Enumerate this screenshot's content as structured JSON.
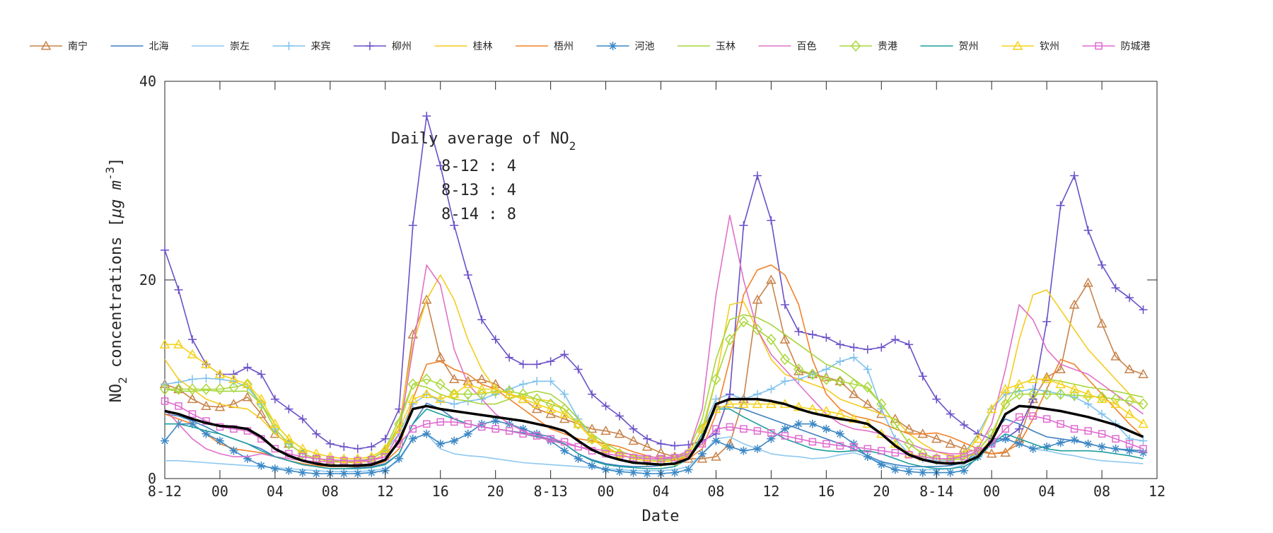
{
  "chart_data": {
    "type": "line",
    "xlabel": "Date",
    "ylabel_main": "NO",
    "ylabel_sub": "2",
    "ylabel_rest": " concentrations [",
    "ylabel_mu": "μg m",
    "ylabel_sup": "-3",
    "ylabel_end": "]",
    "ylim": [
      0,
      40
    ],
    "xlim": [
      0,
      72
    ],
    "yticks": [
      0,
      20,
      40
    ],
    "xticks": [
      {
        "x": 0,
        "label": "8-12"
      },
      {
        "x": 4,
        "label": "00"
      },
      {
        "x": 8,
        "label": "04"
      },
      {
        "x": 12,
        "label": "08"
      },
      {
        "x": 16,
        "label": "12"
      },
      {
        "x": 20,
        "label": "16"
      },
      {
        "x": 24,
        "label": "20"
      },
      {
        "x": 28,
        "label": "8-13"
      },
      {
        "x": 32,
        "label": "00"
      },
      {
        "x": 36,
        "label": "04"
      },
      {
        "x": 40,
        "label": "08"
      },
      {
        "x": 44,
        "label": "12"
      },
      {
        "x": 48,
        "label": "16"
      },
      {
        "x": 52,
        "label": "20"
      },
      {
        "x": 56,
        "label": "8-14"
      },
      {
        "x": 60,
        "label": "00"
      },
      {
        "x": 64,
        "label": "04"
      },
      {
        "x": 68,
        "label": "08"
      },
      {
        "x": 72,
        "label": "12"
      }
    ],
    "annotation": {
      "title": "Daily average of NO",
      "title_sub": "2",
      "lines": [
        "8-12 : 4",
        "8-13 : 4",
        "8-14 : 8"
      ]
    },
    "legend_placement": "top",
    "series": [
      {
        "name": "南宁",
        "color": "#c8834a",
        "marker": "triangle",
        "values": [
          9.5,
          9.0,
          8.0,
          7.3,
          7.2,
          7.5,
          8.2,
          6.5,
          4.5,
          3.5,
          2.5,
          2.0,
          1.8,
          1.7,
          1.8,
          2.0,
          2.8,
          5.0,
          14.5,
          18.0,
          12.2,
          10.0,
          9.8,
          10.0,
          9.5,
          8.5,
          8.0,
          7.0,
          6.5,
          6.0,
          5.5,
          5.0,
          4.8,
          4.5,
          3.8,
          3.2,
          2.6,
          2.2,
          2.0,
          2.0,
          2.2,
          3.5,
          8.0,
          18.0,
          20.0,
          14.0,
          10.8,
          10.5,
          10.2,
          9.8,
          8.5,
          7.5,
          6.5,
          6.0,
          5.0,
          4.5,
          4.0,
          3.5,
          3.0,
          2.7,
          2.5,
          2.6,
          4.0,
          8.0,
          10.2,
          11.0,
          17.5,
          19.7,
          15.6,
          12.3,
          11.0,
          10.5
        ]
      },
      {
        "name": "北海",
        "color": "#3f7fbf",
        "marker": "none",
        "values": [
          6.5,
          6.3,
          5.8,
          5.2,
          4.5,
          4.0,
          3.5,
          3.0,
          2.2,
          1.8,
          1.4,
          1.2,
          1.0,
          1.0,
          1.1,
          1.2,
          1.5,
          2.5,
          5.5,
          7.6,
          7.0,
          6.0,
          5.5,
          5.2,
          5.0,
          4.8,
          4.6,
          4.5,
          4.2,
          3.5,
          2.5,
          1.9,
          1.5,
          1.3,
          1.2,
          1.2,
          1.3,
          1.5,
          2.5,
          5.0,
          7.2,
          7.2,
          7.0,
          6.5,
          6.0,
          5.5,
          5.0,
          4.5,
          4.0,
          3.5,
          3.0,
          2.3,
          1.7,
          1.4,
          1.2,
          1.2,
          1.2,
          1.3,
          1.6,
          2.8,
          4.5,
          6.0,
          5.5,
          4.8,
          4.2,
          4.0,
          3.8,
          3.5,
          3.2,
          3.0,
          2.9,
          2.8
        ]
      },
      {
        "name": "崇左",
        "color": "#8ec8f0",
        "marker": "none",
        "values": [
          1.8,
          1.8,
          1.7,
          1.6,
          1.5,
          1.4,
          1.3,
          1.2,
          1.1,
          1.0,
          0.9,
          0.8,
          0.7,
          0.7,
          0.7,
          0.8,
          1.0,
          1.8,
          4.0,
          4.5,
          3.0,
          2.5,
          2.3,
          2.2,
          2.0,
          1.8,
          1.6,
          1.5,
          1.4,
          1.3,
          1.2,
          1.1,
          1.0,
          0.9,
          0.8,
          0.8,
          0.8,
          0.9,
          1.2,
          2.5,
          4.0,
          4.2,
          3.5,
          3.0,
          2.5,
          2.3,
          2.2,
          2.0,
          2.1,
          2.4,
          2.6,
          2.2,
          1.6,
          1.2,
          1.0,
          0.9,
          0.9,
          1.0,
          1.4,
          2.6,
          3.6,
          4.0,
          3.5,
          3.0,
          2.8,
          2.5,
          2.3,
          2.0,
          1.8,
          1.7,
          1.6,
          1.5
        ]
      },
      {
        "name": "来宾",
        "color": "#7fc1ee",
        "marker": "plus",
        "values": [
          9.5,
          9.7,
          10.0,
          10.1,
          10.0,
          9.8,
          9.2,
          7.5,
          5.0,
          3.5,
          2.5,
          2.0,
          1.8,
          1.7,
          1.8,
          2.0,
          2.8,
          4.5,
          7.5,
          8.5,
          7.8,
          7.5,
          7.8,
          8.0,
          8.5,
          9.0,
          9.5,
          9.8,
          9.8,
          8.5,
          6.0,
          4.0,
          3.0,
          2.5,
          2.0,
          1.8,
          1.8,
          2.0,
          2.5,
          5.0,
          8.0,
          8.5,
          8.0,
          8.5,
          9.0,
          9.8,
          10.0,
          10.5,
          11.0,
          11.8,
          12.2,
          11.0,
          7.0,
          4.0,
          2.5,
          2.0,
          1.8,
          1.8,
          2.5,
          4.5,
          7.0,
          8.5,
          8.8,
          9.0,
          8.8,
          8.5,
          8.2,
          7.5,
          6.5,
          5.5,
          4.0,
          3.8
        ]
      },
      {
        "name": "柳州",
        "color": "#6a50c8",
        "marker": "plus",
        "values": [
          23.0,
          19.0,
          14.0,
          11.5,
          10.5,
          10.5,
          11.2,
          10.5,
          8.0,
          7.0,
          6.0,
          4.5,
          3.5,
          3.2,
          3.0,
          3.2,
          4.0,
          7.0,
          25.5,
          36.5,
          31.5,
          25.5,
          20.5,
          16.0,
          14.0,
          12.2,
          11.5,
          11.5,
          11.8,
          12.5,
          11.0,
          8.5,
          7.3,
          6.3,
          5.0,
          4.0,
          3.5,
          3.3,
          3.4,
          3.8,
          4.5,
          8.5,
          25.5,
          30.5,
          26.0,
          17.5,
          14.8,
          14.5,
          14.2,
          13.5,
          13.2,
          13.0,
          13.2,
          14.0,
          13.5,
          10.3,
          8.0,
          6.5,
          5.4,
          4.5,
          4.0,
          4.0,
          5.0,
          8.0,
          15.8,
          27.5,
          30.5,
          25.0,
          21.5,
          19.2,
          18.2,
          17.0
        ]
      },
      {
        "name": "桂林",
        "color": "#f5cc1e",
        "marker": "none",
        "values": [
          12.0,
          10.0,
          9.0,
          8.0,
          7.5,
          7.2,
          7.0,
          6.0,
          4.5,
          3.5,
          2.5,
          2.0,
          1.7,
          1.6,
          1.6,
          1.8,
          2.5,
          5.5,
          13.5,
          18.0,
          20.5,
          18.0,
          14.0,
          11.0,
          9.0,
          8.5,
          8.2,
          8.0,
          7.8,
          7.0,
          5.5,
          4.2,
          3.2,
          2.5,
          2.0,
          1.8,
          1.7,
          1.8,
          2.2,
          4.5,
          10.0,
          17.5,
          17.8,
          15.0,
          12.0,
          10.5,
          10.0,
          9.5,
          9.0,
          8.0,
          7.5,
          7.0,
          6.5,
          6.0,
          4.5,
          3.5,
          2.7,
          2.3,
          2.2,
          2.5,
          4.0,
          8.0,
          14.0,
          18.5,
          19.0,
          17.0,
          15.0,
          13.0,
          11.5,
          10.0,
          8.5,
          7.0
        ]
      },
      {
        "name": "梧州",
        "color": "#f0822a",
        "marker": "none",
        "values": [
          6.5,
          6.0,
          5.5,
          4.5,
          3.5,
          3.0,
          2.8,
          2.6,
          2.2,
          1.8,
          1.5,
          1.3,
          1.2,
          1.2,
          1.2,
          1.3,
          1.7,
          3.0,
          8.0,
          11.5,
          11.8,
          11.0,
          10.5,
          9.5,
          9.0,
          8.0,
          7.0,
          6.0,
          5.0,
          4.5,
          4.0,
          3.8,
          3.5,
          3.2,
          2.7,
          2.3,
          2.0,
          1.9,
          2.0,
          3.0,
          6.5,
          12.0,
          18.5,
          21.0,
          21.5,
          20.5,
          17.5,
          12.0,
          8.5,
          7.0,
          6.3,
          6.0,
          5.6,
          5.0,
          4.5,
          4.5,
          4.6,
          4.2,
          3.6,
          3.0,
          2.5,
          2.7,
          3.5,
          6.0,
          9.0,
          12.0,
          11.5,
          10.0,
          8.5,
          7.0,
          5.5,
          4.2
        ]
      },
      {
        "name": "河池",
        "color": "#3d88c4",
        "marker": "star",
        "values": [
          3.8,
          5.5,
          5.5,
          4.5,
          3.8,
          2.8,
          2.0,
          1.3,
          1.0,
          0.8,
          0.6,
          0.5,
          0.5,
          0.5,
          0.5,
          0.6,
          0.8,
          2.0,
          4.0,
          4.5,
          3.5,
          3.8,
          4.5,
          5.5,
          5.8,
          5.5,
          5.0,
          4.5,
          3.8,
          2.8,
          2.0,
          1.3,
          0.9,
          0.7,
          0.6,
          0.5,
          0.5,
          0.6,
          0.9,
          2.5,
          3.8,
          3.2,
          2.8,
          3.0,
          4.0,
          5.0,
          5.5,
          5.5,
          5.0,
          4.5,
          3.5,
          2.2,
          1.4,
          0.9,
          0.7,
          0.6,
          0.6,
          0.6,
          0.8,
          2.2,
          3.5,
          4.0,
          3.5,
          3.0,
          3.2,
          3.6,
          3.9,
          3.5,
          3.2,
          3.0,
          2.8,
          2.6
        ]
      },
      {
        "name": "玉林",
        "color": "#a6d63c",
        "marker": "none",
        "values": [
          9.0,
          8.8,
          8.8,
          8.9,
          8.8,
          8.8,
          8.8,
          7.5,
          5.5,
          4.0,
          3.0,
          2.5,
          2.2,
          2.0,
          2.0,
          2.2,
          3.0,
          6.0,
          9.5,
          9.2,
          8.5,
          8.0,
          7.8,
          7.5,
          7.5,
          8.0,
          8.5,
          8.8,
          8.5,
          7.5,
          6.0,
          4.5,
          3.5,
          2.8,
          2.3,
          2.0,
          1.9,
          2.0,
          2.8,
          6.0,
          12.0,
          16.0,
          16.5,
          16.2,
          15.5,
          14.5,
          13.5,
          12.5,
          11.5,
          11.0,
          10.0,
          9.0,
          7.5,
          5.5,
          3.5,
          2.5,
          2.0,
          1.9,
          2.0,
          2.8,
          4.5,
          7.5,
          9.5,
          10.0,
          10.0,
          9.8,
          9.5,
          9.2,
          9.0,
          8.8,
          8.5,
          8.2
        ]
      },
      {
        "name": "百色",
        "color": "#e070c8",
        "marker": "none",
        "values": [
          7.0,
          5.5,
          4.0,
          3.0,
          2.5,
          2.2,
          2.2,
          2.5,
          2.2,
          2.0,
          1.8,
          1.7,
          1.7,
          1.7,
          1.7,
          1.8,
          2.2,
          4.5,
          13.0,
          21.5,
          19.5,
          13.0,
          9.5,
          8.0,
          6.5,
          5.5,
          4.8,
          4.2,
          3.8,
          3.5,
          3.2,
          3.0,
          2.8,
          2.6,
          2.4,
          2.2,
          2.1,
          2.2,
          2.8,
          7.0,
          18.5,
          26.5,
          20.0,
          15.0,
          12.5,
          11.0,
          9.5,
          8.0,
          6.5,
          5.5,
          5.0,
          4.8,
          4.5,
          4.0,
          3.5,
          3.0,
          2.7,
          2.5,
          2.5,
          3.0,
          5.5,
          11.0,
          17.5,
          16.0,
          13.0,
          11.5,
          11.0,
          10.5,
          9.5,
          8.5,
          7.5,
          6.5
        ]
      },
      {
        "name": "贵港",
        "color": "#a9d83a",
        "marker": "diamond",
        "values": [
          9.0,
          9.0,
          9.0,
          9.0,
          9.0,
          9.2,
          9.5,
          7.5,
          5.0,
          3.5,
          2.5,
          2.0,
          1.8,
          1.7,
          1.8,
          2.0,
          2.8,
          5.5,
          9.5,
          10.0,
          9.5,
          8.5,
          8.5,
          8.5,
          8.8,
          8.8,
          8.5,
          8.0,
          7.5,
          7.0,
          5.5,
          4.0,
          3.0,
          2.5,
          2.0,
          1.8,
          1.7,
          1.8,
          2.5,
          5.0,
          10.0,
          14.0,
          15.8,
          15.0,
          14.0,
          12.0,
          11.0,
          10.5,
          10.0,
          9.8,
          9.5,
          9.2,
          7.5,
          5.5,
          3.5,
          2.5,
          2.0,
          1.9,
          2.0,
          2.8,
          4.5,
          7.5,
          8.5,
          8.5,
          8.5,
          8.5,
          8.4,
          8.3,
          8.2,
          8.0,
          7.8,
          7.5
        ]
      },
      {
        "name": "贺州",
        "color": "#1e9e9e",
        "marker": "none",
        "values": [
          5.5,
          5.5,
          5.2,
          4.8,
          4.5,
          4.0,
          3.5,
          2.8,
          2.2,
          1.8,
          1.4,
          1.2,
          1.0,
          1.0,
          1.0,
          1.1,
          1.4,
          2.5,
          5.5,
          7.0,
          6.5,
          6.0,
          5.5,
          5.2,
          5.0,
          4.8,
          4.5,
          4.2,
          4.0,
          3.5,
          2.5,
          1.8,
          1.4,
          1.2,
          1.1,
          1.0,
          1.0,
          1.2,
          2.0,
          4.5,
          7.0,
          7.0,
          6.2,
          5.5,
          4.8,
          4.0,
          3.5,
          3.0,
          2.8,
          2.7,
          2.8,
          2.8,
          2.5,
          2.0,
          1.5,
          1.2,
          1.0,
          1.0,
          1.2,
          2.0,
          3.5,
          4.5,
          4.0,
          3.5,
          3.0,
          2.8,
          2.8,
          2.8,
          2.7,
          2.5,
          2.3,
          2.0
        ]
      },
      {
        "name": "钦州",
        "color": "#f7d21a",
        "marker": "triangle",
        "values": [
          13.5,
          13.5,
          12.5,
          11.5,
          10.5,
          10.0,
          9.5,
          8.0,
          5.5,
          4.0,
          3.0,
          2.5,
          2.2,
          2.0,
          2.0,
          2.2,
          3.0,
          5.0,
          8.0,
          8.5,
          8.0,
          8.5,
          9.5,
          9.0,
          9.0,
          8.5,
          8.0,
          7.5,
          7.0,
          6.5,
          5.5,
          4.0,
          3.0,
          2.5,
          2.0,
          1.8,
          1.7,
          1.8,
          2.5,
          5.0,
          7.0,
          7.5,
          7.5,
          7.5,
          7.5,
          7.5,
          7.2,
          7.0,
          6.8,
          6.5,
          6.0,
          5.5,
          4.5,
          3.5,
          2.5,
          2.2,
          2.0,
          2.0,
          2.5,
          4.0,
          7.0,
          9.0,
          9.5,
          10.0,
          10.0,
          9.5,
          9.0,
          8.5,
          8.0,
          7.5,
          6.5,
          5.5
        ]
      },
      {
        "name": "防城港",
        "color": "#e06ad0",
        "marker": "square",
        "values": [
          7.8,
          7.3,
          6.5,
          5.8,
          5.2,
          5.0,
          4.8,
          4.0,
          3.0,
          2.5,
          2.2,
          2.0,
          1.9,
          1.8,
          1.8,
          1.9,
          2.2,
          3.5,
          5.0,
          5.5,
          5.7,
          5.7,
          5.5,
          5.2,
          5.0,
          4.8,
          4.5,
          4.3,
          4.0,
          3.7,
          3.2,
          2.8,
          2.5,
          2.3,
          2.1,
          2.0,
          2.0,
          2.1,
          2.5,
          3.5,
          5.0,
          5.2,
          5.0,
          4.8,
          4.6,
          4.3,
          4.0,
          3.7,
          3.5,
          3.3,
          3.2,
          3.0,
          2.8,
          2.6,
          2.4,
          2.2,
          2.0,
          2.0,
          2.2,
          2.8,
          3.5,
          5.0,
          6.2,
          6.3,
          6.0,
          5.5,
          5.0,
          4.8,
          4.5,
          4.0,
          3.5,
          3.0
        ]
      }
    ],
    "average_series": {
      "name": "",
      "color": "#000000",
      "values": [
        6.8,
        6.5,
        6.0,
        5.6,
        5.3,
        5.2,
        5.0,
        4.2,
        3.0,
        2.3,
        1.8,
        1.5,
        1.3,
        1.3,
        1.3,
        1.4,
        1.9,
        3.8,
        7.0,
        7.3,
        7.0,
        6.8,
        6.6,
        6.4,
        6.2,
        6.0,
        5.8,
        5.5,
        5.2,
        4.8,
        3.8,
        2.9,
        2.3,
        1.9,
        1.6,
        1.5,
        1.4,
        1.5,
        2.0,
        4.0,
        7.5,
        8.0,
        8.0,
        8.0,
        7.8,
        7.5,
        7.0,
        6.6,
        6.3,
        6.0,
        5.8,
        5.5,
        4.5,
        3.3,
        2.4,
        1.9,
        1.6,
        1.5,
        1.6,
        2.2,
        3.8,
        6.5,
        7.3,
        7.2,
        7.0,
        6.8,
        6.5,
        6.2,
        5.8,
        5.4,
        4.8,
        4.2
      ]
    }
  }
}
